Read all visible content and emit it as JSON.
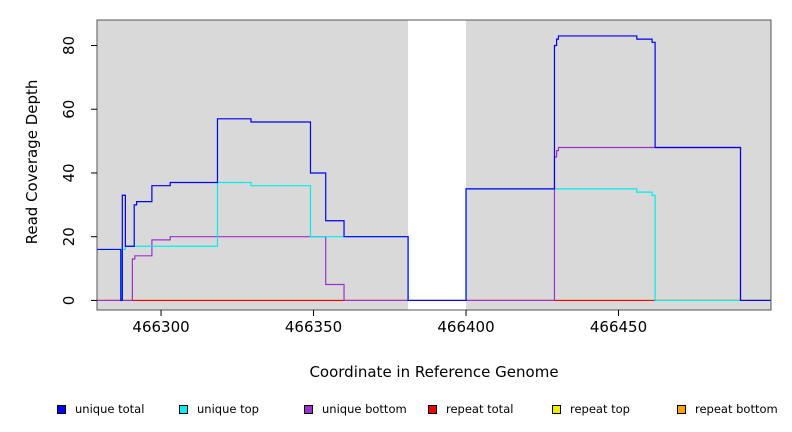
{
  "chart_data": {
    "type": "line",
    "xlabel": "Coordinate in Reference Genome",
    "ylabel": "Read Coverage Depth",
    "xlim": [
      466279,
      466500
    ],
    "ylim": [
      -3,
      88
    ],
    "xticks": [
      466300,
      466350,
      466400,
      466450
    ],
    "yticks": [
      0,
      20,
      40,
      60,
      80
    ],
    "shaded_regions": [
      {
        "x": [
          466279,
          466381
        ],
        "color": "#d9d9d9"
      },
      {
        "x": [
          466400,
          466500
        ],
        "color": "#d9d9d9"
      }
    ],
    "series": [
      {
        "name": "unique total",
        "color": "#0000ee",
        "points": [
          [
            466279,
            16
          ],
          [
            466286.8,
            16
          ],
          [
            466286.8,
            0
          ],
          [
            466287.3,
            0
          ],
          [
            466287.3,
            33
          ],
          [
            466288.3,
            33
          ],
          [
            466288.3,
            17
          ],
          [
            466291.2,
            17
          ],
          [
            466291.2,
            30
          ],
          [
            466292,
            30
          ],
          [
            466292,
            31
          ],
          [
            466297,
            31
          ],
          [
            466297,
            36
          ],
          [
            466303,
            36
          ],
          [
            466303,
            37
          ],
          [
            466318.5,
            37
          ],
          [
            466318.5,
            57
          ],
          [
            466329.5,
            57
          ],
          [
            466329.5,
            56
          ],
          [
            466349,
            56
          ],
          [
            466349,
            40
          ],
          [
            466354,
            40
          ],
          [
            466354,
            25
          ],
          [
            466360,
            25
          ],
          [
            466360,
            20
          ],
          [
            466381,
            20
          ],
          [
            466381,
            0
          ],
          [
            466400,
            0
          ],
          [
            466400,
            35
          ],
          [
            466429,
            35
          ],
          [
            466429,
            80
          ],
          [
            466429.7,
            80
          ],
          [
            466429.7,
            82
          ],
          [
            466430.3,
            82
          ],
          [
            466430.3,
            83
          ],
          [
            466456,
            83
          ],
          [
            466456,
            82
          ],
          [
            466461,
            82
          ],
          [
            466461,
            81
          ],
          [
            466462,
            81
          ],
          [
            466462,
            48
          ],
          [
            466490,
            48
          ],
          [
            466490,
            0
          ],
          [
            466500,
            0
          ]
        ]
      },
      {
        "name": "unique top",
        "color": "#00eeee",
        "points": [
          [
            466279,
            16
          ],
          [
            466286.8,
            16
          ],
          [
            466286.8,
            0
          ],
          [
            466287.3,
            0
          ],
          [
            466287.3,
            16
          ],
          [
            466288.3,
            16
          ],
          [
            466288.3,
            17
          ],
          [
            466318.5,
            17
          ],
          [
            466318.5,
            37
          ],
          [
            466329.5,
            37
          ],
          [
            466329.5,
            36
          ],
          [
            466349,
            36
          ],
          [
            466349,
            20
          ],
          [
            466381,
            20
          ],
          [
            466381,
            0
          ],
          [
            466400,
            0
          ],
          [
            466400,
            35
          ],
          [
            466456,
            35
          ],
          [
            466456,
            34
          ],
          [
            466461,
            34
          ],
          [
            466461,
            33
          ],
          [
            466462,
            33
          ],
          [
            466462,
            0
          ],
          [
            466500,
            0
          ]
        ]
      },
      {
        "name": "unique bottom",
        "color": "#9a32cd",
        "points": [
          [
            466279,
            0
          ],
          [
            466290.6,
            0
          ],
          [
            466290.6,
            13
          ],
          [
            466291.4,
            13
          ],
          [
            466291.4,
            14
          ],
          [
            466297,
            14
          ],
          [
            466297,
            19
          ],
          [
            466303,
            19
          ],
          [
            466303,
            20
          ],
          [
            466354,
            20
          ],
          [
            466354,
            5
          ],
          [
            466360,
            5
          ],
          [
            466360,
            0
          ],
          [
            466429,
            0
          ],
          [
            466429,
            45
          ],
          [
            466429.7,
            45
          ],
          [
            466429.7,
            47
          ],
          [
            466430.3,
            47
          ],
          [
            466430.3,
            48
          ],
          [
            466490,
            48
          ],
          [
            466490,
            0
          ],
          [
            466500,
            0
          ]
        ]
      },
      {
        "name": "repeat total",
        "color": "#ee0000",
        "points": [
          [
            466279,
            0
          ],
          [
            466500,
            0
          ]
        ]
      },
      {
        "name": "repeat top",
        "color": "#eeee00",
        "points": [
          [
            466279,
            0
          ],
          [
            466500,
            0
          ]
        ]
      },
      {
        "name": "repeat bottom",
        "color": "#ffa500",
        "points": [
          [
            466279,
            0
          ],
          [
            466500,
            0
          ]
        ]
      }
    ]
  },
  "legend": {
    "items": [
      {
        "label": "unique total",
        "color": "#0000ee"
      },
      {
        "label": "unique top",
        "color": "#00eeee"
      },
      {
        "label": "unique bottom",
        "color": "#9a32cd"
      },
      {
        "label": "repeat total",
        "color": "#ee0000"
      },
      {
        "label": "repeat top",
        "color": "#eeee00"
      },
      {
        "label": "repeat bottom",
        "color": "#ffa500"
      }
    ]
  }
}
